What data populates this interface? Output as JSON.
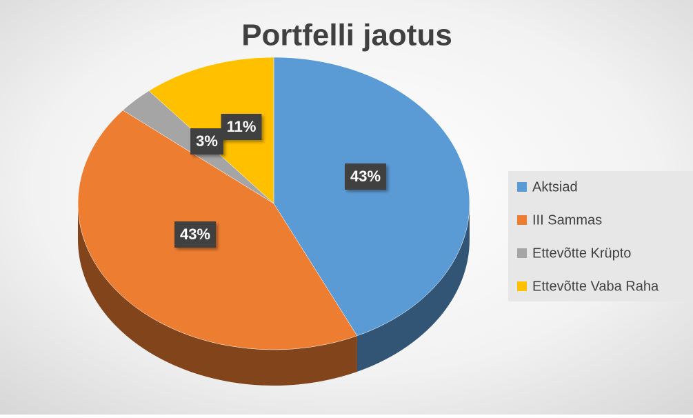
{
  "chart_data": {
    "type": "pie",
    "title": "Portfelli jaotus",
    "categories": [
      "Aktsiad",
      "III Sammas",
      "Ettevõtte Krüpto",
      "Ettevõtte Vaba Raha"
    ],
    "values": [
      43,
      43,
      3,
      11
    ],
    "value_labels": [
      "43%",
      "43%",
      "3%",
      "11%"
    ],
    "colors": [
      "#5b9bd5",
      "#ed7d31",
      "#a5a5a5",
      "#ffc000"
    ],
    "legend": "right"
  }
}
